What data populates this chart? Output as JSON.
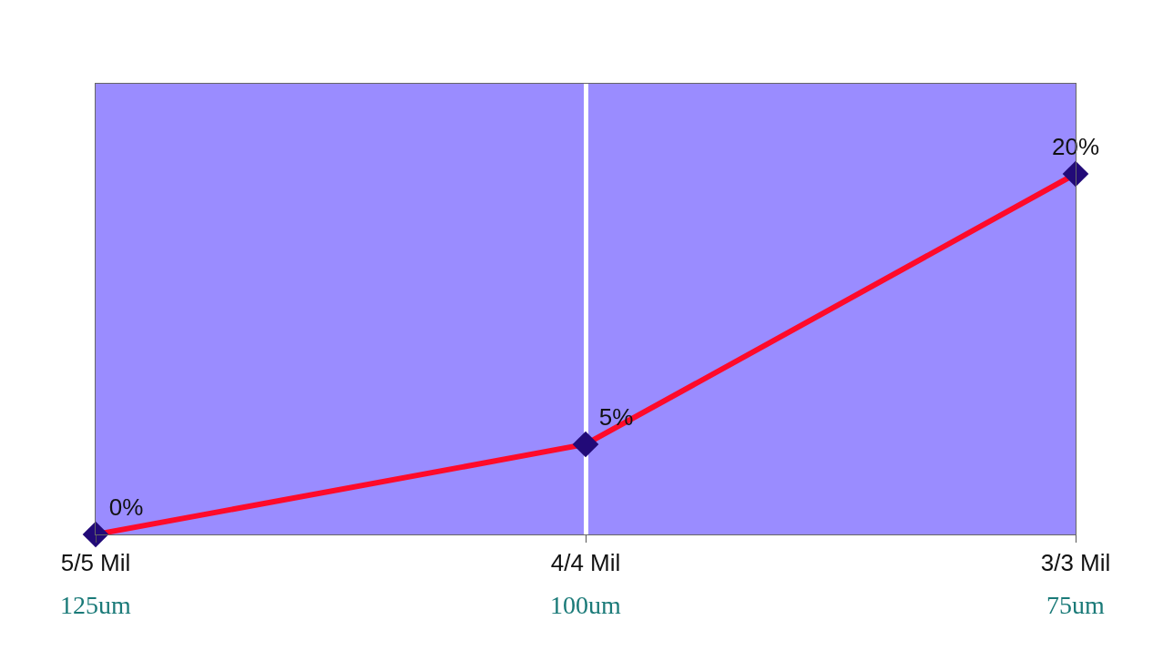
{
  "chart_data": {
    "type": "line",
    "categories": [
      "5/5 Mil",
      "4/4 Mil",
      "3/3 Mil"
    ],
    "series": [
      {
        "color": "#ff0a2a",
        "values": [
          0,
          5,
          20
        ],
        "value_labels": [
          "0%",
          "5%",
          "20%"
        ]
      }
    ],
    "marker": "diamond",
    "line_style": "solid",
    "grid": "x",
    "tick_labels": "x",
    "annotations": [
      "125um",
      "100um",
      "75um"
    ]
  }
}
